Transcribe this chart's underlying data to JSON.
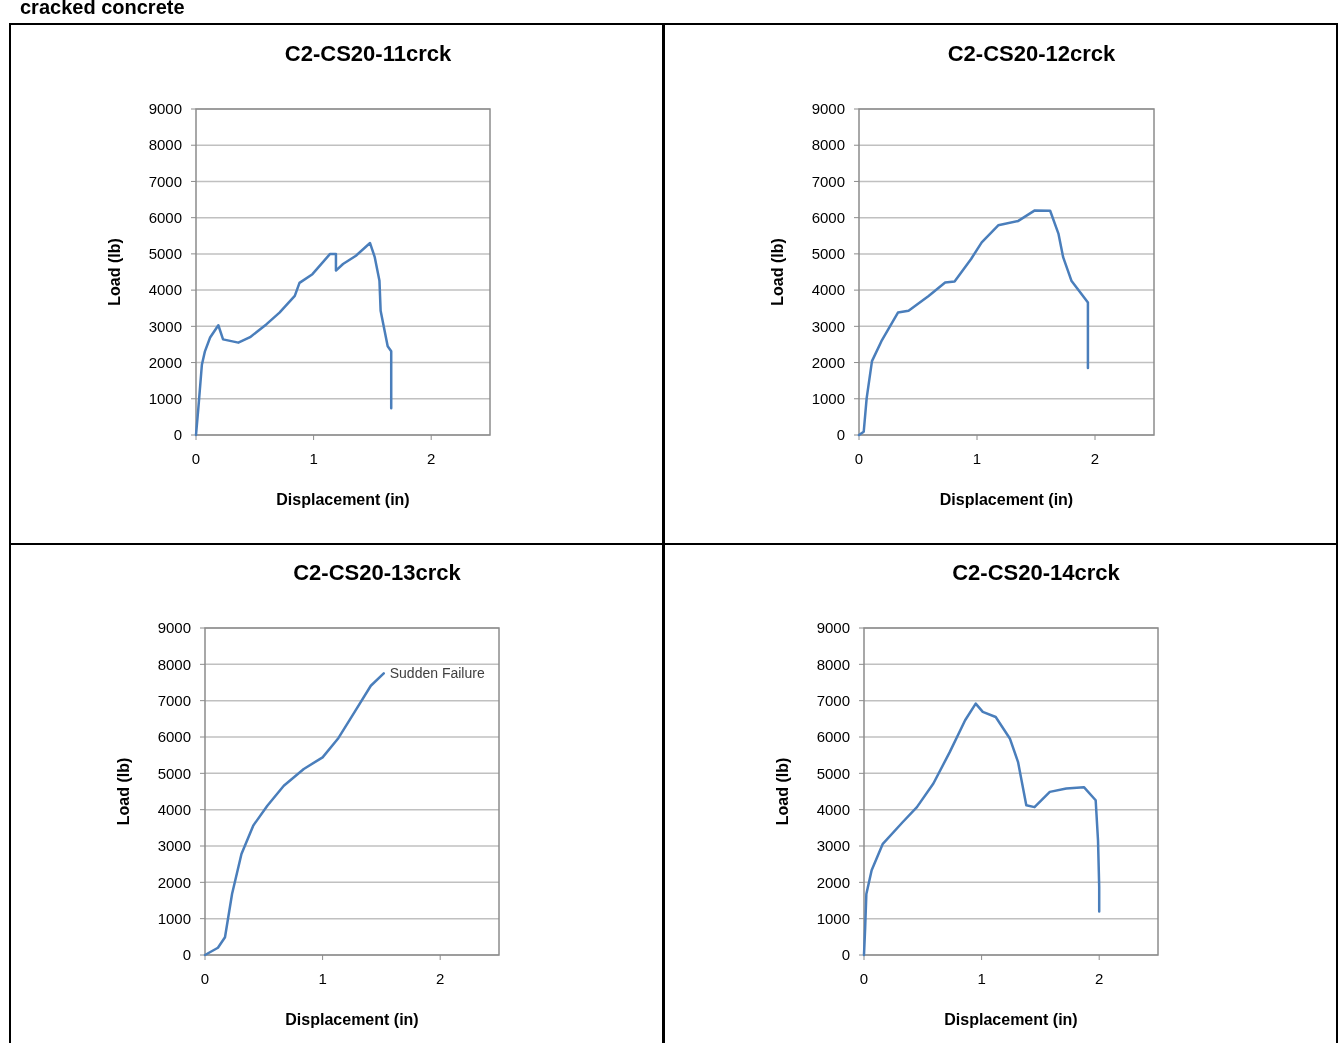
{
  "chart_data": [
    {
      "type": "line",
      "title": "C2-CS20-11crck",
      "xlabel": "Displacement (in)",
      "ylabel": "Load (lb)",
      "annotations": [
        "cracked concrete"
      ],
      "xlim": [
        0,
        2.5
      ],
      "xticks": [
        0,
        1,
        2
      ],
      "ylim": [
        0,
        9000
      ],
      "yticks": [
        0,
        1000,
        2000,
        3000,
        4000,
        5000,
        6000,
        7000,
        8000,
        9000
      ],
      "grid": "y",
      "line_style": "solid",
      "series": [
        {
          "color": "#4a7ebb",
          "x": [
            0,
            0.02,
            0.05,
            0.076,
            0.12,
            0.19,
            0.23,
            0.36,
            0.46,
            0.6,
            0.71,
            0.84,
            0.88,
            0.99,
            1.14,
            1.19,
            1.19,
            1.25,
            1.36,
            1.48,
            1.52,
            1.56,
            1.57,
            1.63,
            1.66,
            1.66
          ],
          "values": [
            0,
            740,
            1940,
            2310,
            2690,
            3030,
            2640,
            2550,
            2700,
            3060,
            3380,
            3840,
            4200,
            4440,
            5000,
            5000,
            4540,
            4720,
            4950,
            5300,
            4910,
            4260,
            3430,
            2450,
            2310,
            740
          ]
        }
      ]
    },
    {
      "type": "line",
      "title": "C2-CS20-12crck",
      "xlabel": "Displacement (in)",
      "ylabel": "Load (lb)",
      "xlim": [
        0,
        2.5
      ],
      "xticks": [
        0,
        1,
        2
      ],
      "ylim": [
        0,
        9000
      ],
      "yticks": [
        0,
        1000,
        2000,
        3000,
        4000,
        5000,
        6000,
        7000,
        8000,
        9000
      ],
      "grid": "y",
      "line_style": "solid",
      "series": [
        {
          "color": "#4a7ebb",
          "x": [
            0,
            0.04,
            0.065,
            0.11,
            0.19,
            0.33,
            0.42,
            0.59,
            0.73,
            0.81,
            0.95,
            1.04,
            1.18,
            1.35,
            1.49,
            1.62,
            1.69,
            1.73,
            1.8,
            1.94,
            1.94
          ],
          "values": [
            0,
            90,
            1020,
            2040,
            2590,
            3380,
            3430,
            3840,
            4210,
            4240,
            4860,
            5320,
            5790,
            5910,
            6200,
            6190,
            5560,
            4910,
            4260,
            3660,
            1850
          ]
        }
      ]
    },
    {
      "type": "line",
      "title": "C2-CS20-13crck",
      "xlabel": "Displacement (in)",
      "ylabel": "Load (lb)",
      "annotations": [
        {
          "text": "Sudden Failure",
          "x": 1.52,
          "y": 7750
        }
      ],
      "xlim": [
        0,
        2.5
      ],
      "xticks": [
        0,
        1,
        2
      ],
      "ylim": [
        0,
        9000
      ],
      "yticks": [
        0,
        1000,
        2000,
        3000,
        4000,
        5000,
        6000,
        7000,
        8000,
        9000
      ],
      "grid": "y",
      "line_style": "solid",
      "series": [
        {
          "color": "#4a7ebb",
          "x": [
            0,
            0.11,
            0.17,
            0.23,
            0.31,
            0.41,
            0.53,
            0.67,
            0.84,
            1.0,
            1.13,
            1.27,
            1.41,
            1.52
          ],
          "values": [
            0,
            200,
            490,
            1680,
            2780,
            3560,
            4110,
            4660,
            5120,
            5440,
            5950,
            6680,
            7410,
            7750
          ]
        }
      ]
    },
    {
      "type": "line",
      "title": "C2-CS20-14crck",
      "xlabel": "Displacement (in)",
      "ylabel": "Load (lb)",
      "xlim": [
        0,
        2.5
      ],
      "xticks": [
        0,
        1,
        2
      ],
      "ylim": [
        0,
        9000
      ],
      "yticks": [
        0,
        1000,
        2000,
        3000,
        4000,
        5000,
        6000,
        7000,
        8000,
        9000
      ],
      "grid": "y",
      "line_style": "solid",
      "series": [
        {
          "color": "#4a7ebb",
          "x": [
            0,
            0.01,
            0.02,
            0.065,
            0.16,
            0.33,
            0.45,
            0.59,
            0.73,
            0.86,
            0.95,
            1.01,
            1.12,
            1.24,
            1.31,
            1.38,
            1.45,
            1.58,
            1.72,
            1.87,
            1.97,
            1.99,
            2.0,
            2.0
          ],
          "values": [
            0,
            760,
            1680,
            2330,
            3060,
            3660,
            4070,
            4720,
            5590,
            6460,
            6920,
            6690,
            6550,
            5960,
            5310,
            4120,
            4070,
            4490,
            4580,
            4620,
            4260,
            3150,
            1870,
            1200
          ]
        }
      ]
    }
  ]
}
